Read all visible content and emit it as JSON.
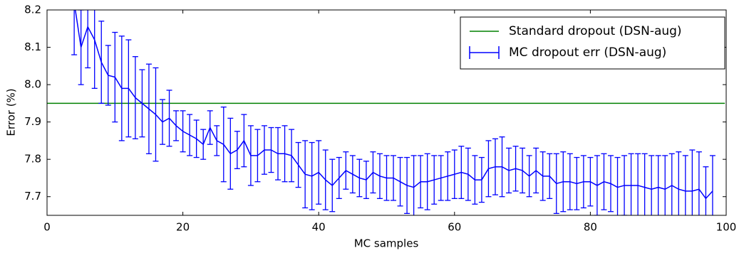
{
  "chart_data": {
    "type": "errorbar",
    "x_label": "MC samples",
    "y_label": "Error (%)",
    "xlim": [
      0,
      100
    ],
    "xticks": [
      0,
      20,
      40,
      60,
      80,
      100
    ],
    "ylim": [
      7.65,
      8.2
    ],
    "yticks": [
      7.7,
      7.8,
      7.9,
      {
        "value": 8,
        "label": "8.0"
      },
      8.1,
      8.2
    ],
    "legend": "upper right",
    "x": [
      4,
      5,
      6,
      7,
      8,
      9,
      10,
      11,
      12,
      13,
      14,
      15,
      16,
      17,
      18,
      19,
      20,
      21,
      22,
      23,
      24,
      25,
      26,
      27,
      28,
      29,
      30,
      31,
      32,
      33,
      34,
      35,
      36,
      37,
      38,
      39,
      40,
      41,
      42,
      43,
      44,
      45,
      46,
      47,
      48,
      49,
      50,
      51,
      52,
      53,
      54,
      55,
      56,
      57,
      58,
      59,
      60,
      61,
      62,
      63,
      64,
      65,
      66,
      67,
      68,
      69,
      70,
      71,
      72,
      73,
      74,
      75,
      76,
      77,
      78,
      79,
      80,
      81,
      82,
      83,
      84,
      85,
      86,
      87,
      88,
      89,
      90,
      91,
      92,
      93,
      94,
      95,
      96,
      97,
      98
    ],
    "series": [
      {
        "name": "Standard dropout (DSN-aug)",
        "color": "#008000",
        "kind": "hline",
        "value": 7.95
      },
      {
        "name": "MC dropout err (DSN-aug)",
        "color": "#0000ff",
        "kind": "errorbar",
        "values": [
          8.22,
          8.1,
          8.155,
          8.12,
          8.06,
          8.025,
          8.02,
          7.99,
          7.99,
          7.965,
          7.95,
          7.935,
          7.92,
          7.9,
          7.91,
          7.89,
          7.875,
          7.865,
          7.855,
          7.84,
          7.885,
          7.85,
          7.84,
          7.815,
          7.825,
          7.85,
          7.81,
          7.81,
          7.825,
          7.825,
          7.815,
          7.815,
          7.81,
          7.785,
          7.76,
          7.755,
          7.765,
          7.745,
          7.73,
          7.75,
          7.77,
          7.76,
          7.75,
          7.745,
          7.765,
          7.755,
          7.75,
          7.75,
          7.74,
          7.73,
          7.725,
          7.74,
          7.74,
          7.745,
          7.75,
          7.755,
          7.76,
          7.765,
          7.76,
          7.745,
          7.745,
          7.775,
          7.78,
          7.78,
          7.77,
          7.775,
          7.77,
          7.755,
          7.77,
          7.755,
          7.755,
          7.735,
          7.74,
          7.74,
          7.735,
          7.74,
          7.74,
          7.73,
          7.74,
          7.735,
          7.725,
          7.73,
          7.73,
          7.73,
          7.725,
          7.72,
          7.725,
          7.72,
          7.73,
          7.72,
          7.715,
          7.715,
          7.72,
          7.695,
          7.715
        ],
        "errors": [
          0.14,
          0.1,
          0.11,
          0.13,
          0.11,
          0.08,
          0.12,
          0.14,
          0.13,
          0.11,
          0.09,
          0.12,
          0.125,
          0.06,
          0.075,
          0.04,
          0.055,
          0.055,
          0.05,
          0.04,
          0.045,
          0.04,
          0.1,
          0.095,
          0.05,
          0.07,
          0.08,
          0.07,
          0.065,
          0.06,
          0.07,
          0.075,
          0.07,
          0.06,
          0.09,
          0.09,
          0.085,
          0.08,
          0.07,
          0.055,
          0.05,
          0.05,
          0.05,
          0.05,
          0.055,
          0.06,
          0.06,
          0.06,
          0.065,
          0.075,
          0.085,
          0.07,
          0.075,
          0.065,
          0.06,
          0.065,
          0.065,
          0.07,
          0.07,
          0.065,
          0.06,
          0.075,
          0.075,
          0.08,
          0.06,
          0.06,
          0.06,
          0.055,
          0.06,
          0.065,
          0.06,
          0.08,
          0.08,
          0.075,
          0.07,
          0.07,
          0.065,
          0.08,
          0.075,
          0.075,
          0.08,
          0.08,
          0.085,
          0.085,
          0.09,
          0.09,
          0.085,
          0.09,
          0.085,
          0.1,
          0.095,
          0.11,
          0.1,
          0.085,
          0.095
        ]
      }
    ]
  }
}
